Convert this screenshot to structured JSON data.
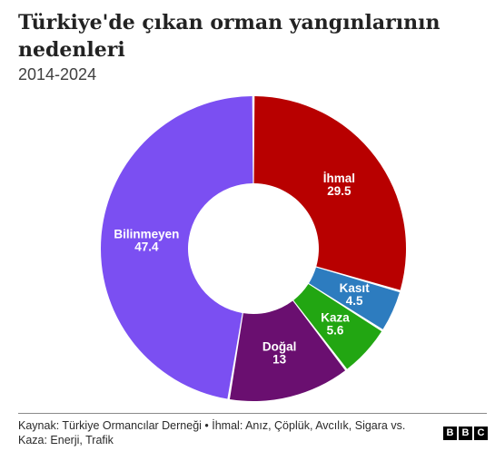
{
  "chart_data": {
    "type": "pie",
    "title": "Türkiye'de çıkan orman yangınlarının nedenleri",
    "subtitle": "2014-2024",
    "donut": true,
    "slices": [
      {
        "label": "İhmal",
        "value": 29.5,
        "display": "29.5",
        "color": "#b80000"
      },
      {
        "label": "Kasıt",
        "value": 4.5,
        "display": "4.5",
        "color": "#2d7cbf"
      },
      {
        "label": "Kaza",
        "value": 5.6,
        "display": "5.6",
        "color": "#22a612"
      },
      {
        "label": "Doğal",
        "value": 13,
        "display": "13",
        "color": "#6a0f70"
      },
      {
        "label": "Bilinmeyen",
        "value": 47.4,
        "display": "47.4",
        "color": "#7b4ff2"
      }
    ]
  },
  "footer": {
    "source": "Kaynak: Türkiye Ormancılar Derneği • İhmal: Anız, Çöplük, Avcılık, Sigara vs. Kaza: Enerji, Trafik"
  },
  "logo": {
    "letters": [
      "B",
      "B",
      "C"
    ]
  }
}
